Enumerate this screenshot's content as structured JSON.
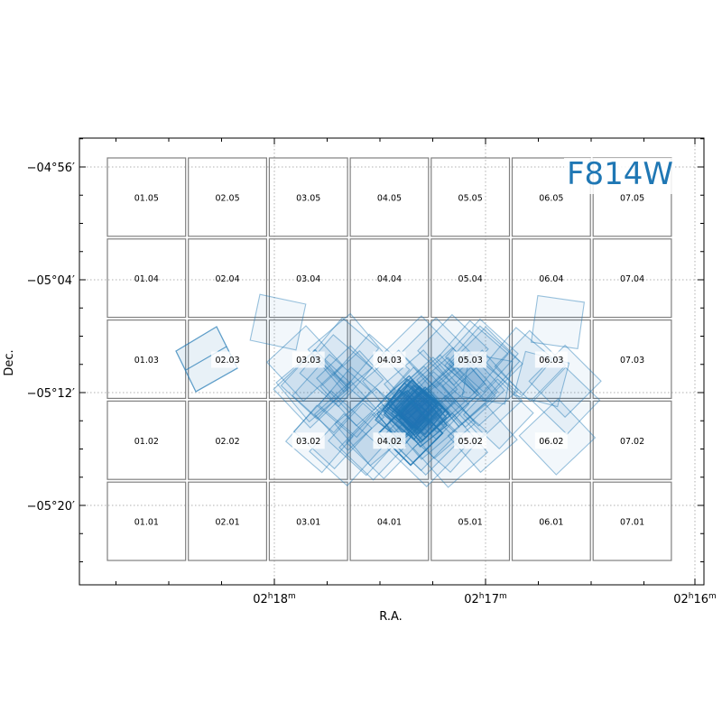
{
  "chart_data": {
    "type": "scatter",
    "title": "",
    "xlabel": "R.A.",
    "ylabel": "Dec.",
    "annotation": "F814W",
    "colors": {
      "footprint": "#1f77b4",
      "grid": "#808080",
      "frame": "#000000",
      "gridlines": "#b0b0b0"
    },
    "grid": true,
    "x_ticks": [
      {
        "h": "02",
        "m": "18",
        "label": "02h18m"
      },
      {
        "h": "02",
        "m": "17",
        "label": "02h17m"
      },
      {
        "h": "02",
        "m": "16",
        "label": "02h16m"
      }
    ],
    "y_ticks": [
      {
        "label": "−04°56′",
        "value_arcmin": -296
      },
      {
        "label": "−05°04′",
        "value_arcmin": -304
      },
      {
        "label": "−05°12′",
        "value_arcmin": -312
      },
      {
        "label": "−05°20′",
        "value_arcmin": -320
      }
    ],
    "tiles": [
      "01.05",
      "02.05",
      "03.05",
      "04.05",
      "05.05",
      "06.05",
      "07.05",
      "01.04",
      "02.04",
      "03.04",
      "04.04",
      "05.04",
      "06.04",
      "07.04",
      "01.03",
      "02.03",
      "03.03",
      "04.03",
      "05.03",
      "06.03",
      "07.03",
      "01.02",
      "02.02",
      "03.02",
      "04.02",
      "05.02",
      "06.02",
      "07.02",
      "01.01",
      "02.01",
      "03.01",
      "04.01",
      "05.01",
      "06.01",
      "07.01"
    ],
    "highlighted_tiles": [
      "02.03",
      "03.03",
      "04.03",
      "05.03",
      "06.03",
      "03.02",
      "04.02",
      "05.02",
      "06.02"
    ]
  }
}
